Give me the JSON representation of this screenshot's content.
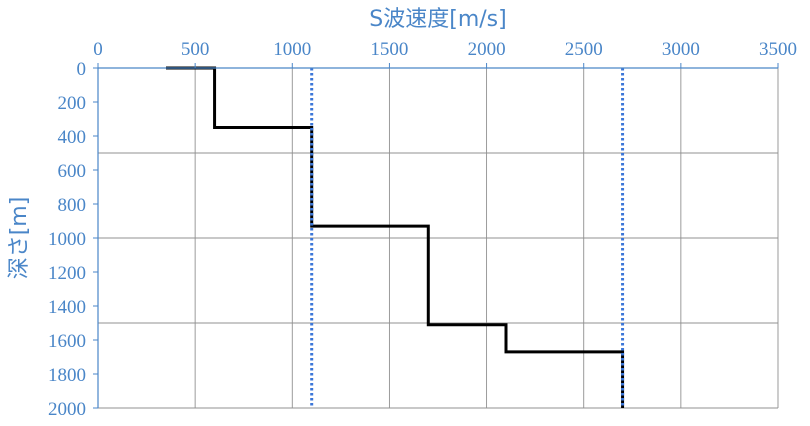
{
  "chart_data": {
    "type": "line",
    "xlabel": "S波速度[m/s]",
    "ylabel": "深さ[m]",
    "x_axis_position": "top",
    "y_axis_inverted": true,
    "xlim": [
      0,
      3500
    ],
    "ylim": [
      0,
      2000
    ],
    "x_ticks": [
      "0",
      "500",
      "1000",
      "1500",
      "2000",
      "2500",
      "3000",
      "3500"
    ],
    "y_ticks": [
      "0",
      "200",
      "400",
      "600",
      "800",
      "1000",
      "1200",
      "1400",
      "1600",
      "1800",
      "2000"
    ],
    "x_tick_values": [
      0,
      500,
      1000,
      1500,
      2000,
      2500,
      3000,
      3500
    ],
    "y_tick_values": [
      0,
      200,
      400,
      600,
      800,
      1000,
      1200,
      1400,
      1600,
      1800,
      2000
    ],
    "grid": {
      "vertical_every": 500,
      "horizontal_every": 500
    },
    "series": [
      {
        "style": "solid",
        "color": "#000000",
        "points": [
          {
            "x": 350,
            "y": 0
          },
          {
            "x": 600,
            "y": 0
          },
          {
            "x": 600,
            "y": 350
          },
          {
            "x": 1100,
            "y": 350
          },
          {
            "x": 1100,
            "y": 930
          },
          {
            "x": 1700,
            "y": 930
          },
          {
            "x": 1700,
            "y": 1510
          },
          {
            "x": 2100,
            "y": 1510
          },
          {
            "x": 2100,
            "y": 1670
          },
          {
            "x": 2700,
            "y": 1670
          },
          {
            "x": 2700,
            "y": 2000
          }
        ]
      },
      {
        "style": "dotted",
        "color": "#3b76d8",
        "points": [
          {
            "x": 1100,
            "y": 0
          },
          {
            "x": 1100,
            "y": 2000
          }
        ]
      },
      {
        "style": "dotted",
        "color": "#3b76d8",
        "points": [
          {
            "x": 2700,
            "y": 0
          },
          {
            "x": 2700,
            "y": 2000
          }
        ]
      }
    ],
    "colors": {
      "axis_text": "#4a86c8",
      "axis_line": "#4a86c8",
      "grid": "#909090"
    }
  }
}
